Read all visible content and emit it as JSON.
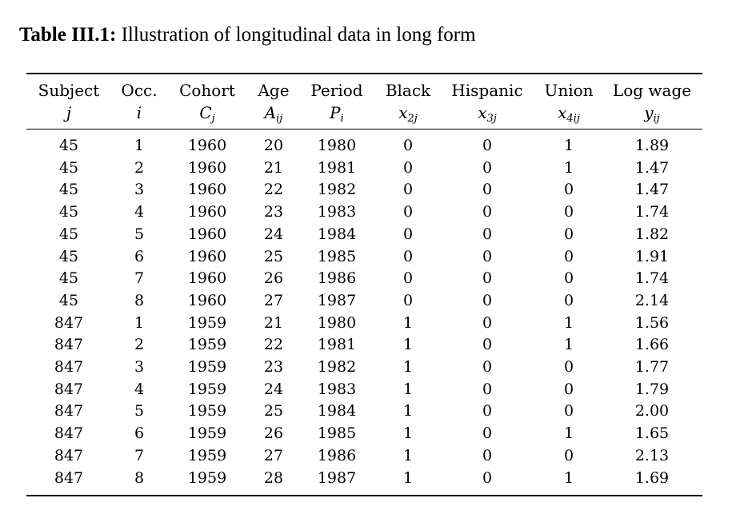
{
  "caption": {
    "label": "Table III.1:",
    "text": "Illustration of longitudinal data in long form"
  },
  "columns": [
    {
      "name": "Subject",
      "sym": "j",
      "sub": ""
    },
    {
      "name": "Occ.",
      "sym": "i",
      "sub": ""
    },
    {
      "name": "Cohort",
      "sym": "C",
      "sub": "j"
    },
    {
      "name": "Age",
      "sym": "A",
      "sub": "ij"
    },
    {
      "name": "Period",
      "sym": "P",
      "sub": "i"
    },
    {
      "name": "Black",
      "sym": "x",
      "sub": "2j"
    },
    {
      "name": "Hispanic",
      "sym": "x",
      "sub": "3j"
    },
    {
      "name": "Union",
      "sym": "x",
      "sub": "4ij"
    },
    {
      "name": "Log wage",
      "sym": "y",
      "sub": "ij"
    }
  ],
  "rows": [
    [
      "45",
      "1",
      "1960",
      "20",
      "1980",
      "0",
      "0",
      "1",
      "1.89"
    ],
    [
      "45",
      "2",
      "1960",
      "21",
      "1981",
      "0",
      "0",
      "1",
      "1.47"
    ],
    [
      "45",
      "3",
      "1960",
      "22",
      "1982",
      "0",
      "0",
      "0",
      "1.47"
    ],
    [
      "45",
      "4",
      "1960",
      "23",
      "1983",
      "0",
      "0",
      "0",
      "1.74"
    ],
    [
      "45",
      "5",
      "1960",
      "24",
      "1984",
      "0",
      "0",
      "0",
      "1.82"
    ],
    [
      "45",
      "6",
      "1960",
      "25",
      "1985",
      "0",
      "0",
      "0",
      "1.91"
    ],
    [
      "45",
      "7",
      "1960",
      "26",
      "1986",
      "0",
      "0",
      "0",
      "1.74"
    ],
    [
      "45",
      "8",
      "1960",
      "27",
      "1987",
      "0",
      "0",
      "0",
      "2.14"
    ],
    [
      "847",
      "1",
      "1959",
      "21",
      "1980",
      "1",
      "0",
      "1",
      "1.56"
    ],
    [
      "847",
      "2",
      "1959",
      "22",
      "1981",
      "1",
      "0",
      "1",
      "1.66"
    ],
    [
      "847",
      "3",
      "1959",
      "23",
      "1982",
      "1",
      "0",
      "0",
      "1.77"
    ],
    [
      "847",
      "4",
      "1959",
      "24",
      "1983",
      "1",
      "0",
      "0",
      "1.79"
    ],
    [
      "847",
      "5",
      "1959",
      "25",
      "1984",
      "1",
      "0",
      "0",
      "2.00"
    ],
    [
      "847",
      "6",
      "1959",
      "26",
      "1985",
      "1",
      "0",
      "1",
      "1.65"
    ],
    [
      "847",
      "7",
      "1959",
      "27",
      "1986",
      "1",
      "0",
      "0",
      "2.13"
    ],
    [
      "847",
      "8",
      "1959",
      "28",
      "1987",
      "1",
      "0",
      "1",
      "1.69"
    ]
  ]
}
